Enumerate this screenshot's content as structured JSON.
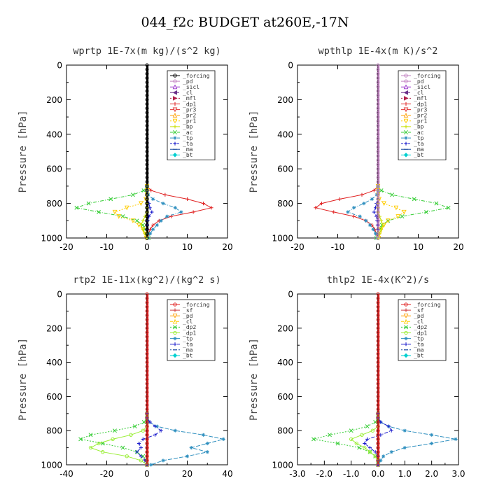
{
  "figure_title": "044_f2c  BUDGET at260E,-17N",
  "chart_data": [
    {
      "type": "line",
      "title": "wprtp  1E-7x(m kg)/(s^2 kg)",
      "ylabel": "Pressure [hPa]",
      "xlabel": "",
      "xlim": [
        -20,
        20
      ],
      "ylim": [
        1000,
        0
      ],
      "y_inverted": true,
      "xticks": [
        -20,
        -10,
        0,
        10,
        20
      ],
      "xtick_labels": [
        "-20",
        "-10",
        "0",
        "10",
        "20"
      ],
      "yticks": [
        0,
        200,
        400,
        600,
        800,
        1000
      ],
      "ytick_labels": [
        "0",
        "200",
        "400",
        "600",
        "800",
        "1000"
      ],
      "legend_placement": "top-right",
      "legend": [
        "_forcing",
        "_pd",
        "_sicl",
        "_cl",
        "_mfl",
        "_dp1",
        "_pr3",
        "_pr2",
        "_pr1",
        "_bp",
        "_ac",
        "_tp",
        "_ta",
        "_ma",
        "_bt"
      ],
      "colors": [
        "#000000",
        "#c080c0",
        "#9933cc",
        "#6a2f8a",
        "#b0204a",
        "#e02020",
        "#e03030",
        "#ffa000",
        "#ffcc00",
        "#c8e000",
        "#33cc33",
        "#2e8fbf",
        "#1a1acc",
        "#1a4aa0",
        "#00d0d0"
      ],
      "markers": [
        "circle",
        "circle",
        "triangle",
        "triangle-left",
        "triangle-right",
        "plus",
        "triangle-down",
        "triangle",
        "triangle-down",
        "plus",
        "x",
        "star",
        "plus",
        "dash",
        "diamond"
      ],
      "pressure": [
        0,
        50,
        100,
        150,
        200,
        250,
        300,
        350,
        400,
        450,
        500,
        550,
        600,
        650,
        700,
        725,
        750,
        775,
        800,
        825,
        850,
        875,
        900,
        925,
        950,
        975,
        1000
      ],
      "series": [
        {
          "legend_index": 5,
          "values": [
            0,
            0,
            0,
            0,
            0,
            0,
            0,
            0,
            0,
            0,
            0,
            0,
            0,
            0,
            0,
            1.0,
            4.5,
            10.0,
            14.0,
            16.0,
            11.5,
            6.0,
            3.0,
            1.5,
            0.8,
            0.4,
            0.2
          ]
        },
        {
          "legend_index": 10,
          "values": [
            0,
            0,
            0,
            0,
            0,
            0,
            0,
            0,
            0,
            0,
            0,
            0,
            0,
            0,
            0,
            -0.8,
            -3.5,
            -9.0,
            -14.5,
            -17.5,
            -12.0,
            -6.0,
            -2.5,
            -1.0,
            -0.5,
            0.2,
            0.4
          ]
        },
        {
          "legend_index": 8,
          "values": [
            0,
            0,
            0,
            0,
            0,
            0,
            0,
            0,
            0,
            0,
            0,
            0,
            0,
            0,
            0,
            0,
            0,
            -0.3,
            -1.5,
            -5.0,
            -8.0,
            -7.0,
            -3.5,
            -2.0,
            -1.0,
            -0.5,
            -0.2
          ]
        },
        {
          "legend_index": 11,
          "values": [
            0,
            0,
            0,
            0,
            0,
            0,
            0,
            0,
            0,
            0,
            0,
            0,
            0,
            0,
            0,
            0,
            0.3,
            1.5,
            4.0,
            7.0,
            8.5,
            5.0,
            3.5,
            2.5,
            1.5,
            0.8,
            0.3
          ]
        },
        {
          "legend_index": 12,
          "values": [
            0,
            0,
            0,
            0,
            0,
            0,
            0,
            0,
            0,
            0,
            0,
            0,
            0,
            0,
            0,
            0,
            0,
            0,
            0.5,
            0.7,
            1.2,
            0.5,
            0.2,
            0.1,
            0,
            0,
            0
          ]
        },
        {
          "legend_index": 9,
          "values": [
            0,
            0,
            0,
            0,
            0,
            0,
            0,
            0,
            0,
            0,
            0,
            0,
            0,
            0,
            0,
            0,
            0,
            0,
            0,
            0,
            0,
            -0.5,
            -1.0,
            -1.5,
            -1.0,
            -0.5,
            0
          ]
        },
        {
          "legend_index": 0,
          "values": [
            0,
            0,
            0,
            0,
            0,
            0,
            0,
            0,
            0,
            0,
            0,
            0,
            0,
            0,
            0,
            0,
            0,
            0,
            0,
            0,
            0,
            0,
            0,
            0,
            0,
            0,
            0
          ]
        }
      ]
    },
    {
      "type": "line",
      "title": "wpthlp  1E-4x(m K)/s^2",
      "ylabel": "Pressure [hPa]",
      "xlabel": "",
      "xlim": [
        -20,
        20
      ],
      "ylim": [
        1000,
        0
      ],
      "y_inverted": true,
      "xticks": [
        -20,
        -10,
        0,
        10,
        20
      ],
      "xtick_labels": [
        "-20",
        "-10",
        "0",
        "10",
        "20"
      ],
      "yticks": [
        0,
        200,
        400,
        600,
        800,
        1000
      ],
      "ytick_labels": [
        "0",
        "200",
        "400",
        "600",
        "800",
        "1000"
      ],
      "legend_placement": "top-right",
      "legend": [
        "_forcing",
        "_pd",
        "_sicl",
        "_cl",
        "_mfl",
        "_dp1",
        "_pr3",
        "_pr2",
        "_pr1",
        "_bp",
        "_ac",
        "_tp",
        "_ta",
        "_ma",
        "_bt"
      ],
      "colors": [
        "#c080c0",
        "#c080c0",
        "#9933cc",
        "#6a2f8a",
        "#b0204a",
        "#e02020",
        "#e03030",
        "#ffa000",
        "#ffcc00",
        "#c8e000",
        "#33cc33",
        "#2e8fbf",
        "#1a1acc",
        "#1a4aa0",
        "#00d0d0"
      ],
      "markers": [
        "circle",
        "circle",
        "triangle",
        "triangle-left",
        "triangle-right",
        "plus",
        "triangle-down",
        "triangle",
        "triangle-down",
        "plus",
        "x",
        "star",
        "plus",
        "dash",
        "diamond"
      ],
      "pressure": [
        0,
        50,
        100,
        150,
        200,
        250,
        300,
        350,
        400,
        450,
        500,
        550,
        600,
        650,
        700,
        725,
        750,
        775,
        800,
        825,
        850,
        875,
        900,
        925,
        950,
        975,
        1000
      ],
      "series": [
        {
          "legend_index": 5,
          "values": [
            0,
            0,
            0,
            0,
            0,
            0,
            0,
            0,
            0,
            0,
            0,
            0,
            0,
            0,
            0,
            -1.0,
            -4.0,
            -9.5,
            -14.0,
            -15.5,
            -11.0,
            -6.0,
            -3.0,
            -1.5,
            -0.8,
            -0.4,
            -0.2
          ]
        },
        {
          "legend_index": 10,
          "values": [
            0,
            0,
            0,
            0,
            0,
            0,
            0,
            0,
            0,
            0,
            0,
            0,
            0,
            0,
            0,
            0.8,
            3.5,
            9.0,
            14.5,
            17.5,
            12.0,
            6.0,
            2.5,
            1.0,
            0.5,
            -0.2,
            -0.4
          ]
        },
        {
          "legend_index": 8,
          "values": [
            0,
            0,
            0,
            0,
            0,
            0,
            0,
            0,
            0,
            0,
            0,
            0,
            0,
            0,
            0,
            0,
            0,
            0.3,
            1.5,
            4.5,
            6.5,
            5.0,
            2.5,
            1.5,
            0.8,
            0.4,
            0.2
          ]
        },
        {
          "legend_index": 11,
          "values": [
            0,
            0,
            0,
            0,
            0,
            0,
            0,
            0,
            0,
            0,
            0,
            0,
            0,
            0,
            0,
            0,
            -0.3,
            -1.5,
            -3.5,
            -6.0,
            -7.5,
            -4.5,
            -3.0,
            -2.0,
            -1.2,
            -0.6,
            -0.2
          ]
        },
        {
          "legend_index": 12,
          "values": [
            0,
            0,
            0,
            0,
            0,
            0,
            0,
            0,
            0,
            0,
            0,
            0,
            0,
            0,
            0,
            0,
            0,
            0,
            -0.4,
            -0.6,
            -1.0,
            -0.4,
            -0.2,
            -0.1,
            0,
            0,
            0
          ]
        },
        {
          "legend_index": 9,
          "values": [
            0,
            0,
            0,
            0,
            0,
            0,
            0,
            0,
            0,
            0,
            0,
            0,
            0,
            0,
            0,
            0,
            0,
            0,
            0,
            0,
            0,
            0.4,
            0.8,
            1.2,
            0.8,
            0.4,
            0
          ]
        },
        {
          "legend_index": 0,
          "values": [
            0,
            0,
            0,
            0,
            0,
            0,
            0,
            0,
            0,
            0,
            0,
            0,
            0,
            0,
            0,
            0,
            0,
            0,
            0,
            0,
            0,
            0,
            0,
            0,
            0,
            0,
            0
          ]
        }
      ]
    },
    {
      "type": "line",
      "title": "rtp2  1E-11x(kg^2)/(kg^2 s)",
      "ylabel": "Pressure [hPa]",
      "xlabel": "",
      "xlim": [
        -40,
        40
      ],
      "ylim": [
        1000,
        0
      ],
      "y_inverted": true,
      "xticks": [
        -40,
        -20,
        0,
        20,
        40
      ],
      "xtick_labels": [
        "-40",
        "-20",
        "0",
        "20",
        "40"
      ],
      "yticks": [
        0,
        200,
        400,
        600,
        800,
        1000
      ],
      "ytick_labels": [
        "0",
        "200",
        "400",
        "600",
        "800",
        "1000"
      ],
      "legend_placement": "top-right",
      "legend": [
        "_forcing",
        "_sf",
        "_pd",
        "_cl",
        "_dp2",
        "_dp1",
        "_tp",
        "_ta",
        "_ma",
        "_bt"
      ],
      "colors": [
        "#e02020",
        "#d04040",
        "#ffa000",
        "#ffcc00",
        "#33cc33",
        "#99ee33",
        "#2e8fbf",
        "#1a1acc",
        "#1a4aa0",
        "#00d0d0"
      ],
      "markers": [
        "circle",
        "plus",
        "triangle-down",
        "triangle",
        "x",
        "circle",
        "star",
        "plus",
        "dash",
        "diamond"
      ],
      "pressure": [
        0,
        50,
        100,
        150,
        200,
        250,
        300,
        350,
        400,
        450,
        500,
        550,
        600,
        650,
        700,
        725,
        750,
        775,
        800,
        825,
        850,
        875,
        900,
        925,
        950,
        975,
        1000
      ],
      "series": [
        {
          "legend_index": 4,
          "values": [
            0,
            0,
            0,
            0,
            0,
            0,
            0,
            0,
            0,
            0,
            0,
            0,
            0,
            0,
            0,
            0,
            -1.5,
            -6.0,
            -16.0,
            -28.0,
            -33.0,
            -22.0,
            -12.0,
            -5.0,
            -2.0,
            -0.5,
            0
          ]
        },
        {
          "legend_index": 5,
          "values": [
            0,
            0,
            0,
            0,
            0,
            0,
            0,
            0,
            0,
            0,
            0,
            0,
            0,
            0,
            0,
            0,
            0,
            0,
            -2.0,
            -8.0,
            -17.0,
            -24.0,
            -28.0,
            -22.0,
            -10.0,
            -3.0,
            0
          ]
        },
        {
          "legend_index": 6,
          "values": [
            0,
            0,
            0,
            0,
            0,
            0,
            0,
            0,
            0,
            0,
            0,
            0,
            0,
            0,
            0,
            0,
            1.0,
            5.0,
            14.0,
            28.0,
            38.0,
            30.0,
            22.0,
            30.0,
            20.0,
            8.0,
            2.0
          ]
        },
        {
          "legend_index": 7,
          "values": [
            0,
            0,
            0,
            0,
            0,
            0,
            0,
            0,
            0,
            0,
            0,
            0,
            0,
            0,
            0,
            0,
            1.5,
            4.0,
            7.0,
            4.0,
            -2.0,
            -4.0,
            -3.0,
            -5.0,
            -3.0,
            -1.0,
            0
          ]
        },
        {
          "legend_index": 0,
          "values": [
            0,
            0,
            0,
            0,
            0,
            0,
            0,
            0,
            0,
            0,
            0,
            0,
            0,
            0,
            0,
            0,
            0,
            0,
            0,
            0,
            0,
            0,
            0,
            0,
            0,
            0,
            0
          ]
        }
      ]
    },
    {
      "type": "line",
      "title": "thlp2  1E-4x(K^2)/s",
      "ylabel": "Pressure [hPa]",
      "xlabel": "",
      "xlim": [
        -3.0,
        3.0
      ],
      "ylim": [
        1000,
        0
      ],
      "y_inverted": true,
      "xticks": [
        -3.0,
        -2.0,
        -1.0,
        0.0,
        1.0,
        2.0,
        3.0
      ],
      "xtick_labels": [
        "-3.0",
        "-2.0",
        "-1.0",
        "0.0",
        "1.0",
        "2.0",
        "3.0"
      ],
      "yticks": [
        0,
        200,
        400,
        600,
        800,
        1000
      ],
      "ytick_labels": [
        "0",
        "200",
        "400",
        "600",
        "800",
        "1000"
      ],
      "legend_placement": "top-right",
      "legend": [
        "_forcing",
        "_sf",
        "_pd",
        "_cl",
        "_dp2",
        "_dp1",
        "_tp",
        "_ta",
        "_ma",
        "_bt"
      ],
      "colors": [
        "#e02020",
        "#d04040",
        "#ffa000",
        "#ffcc00",
        "#33cc33",
        "#99ee33",
        "#2e8fbf",
        "#1a1acc",
        "#1a4aa0",
        "#00d0d0"
      ],
      "markers": [
        "circle",
        "plus",
        "triangle-down",
        "triangle",
        "x",
        "circle",
        "star",
        "plus",
        "dash",
        "diamond"
      ],
      "pressure": [
        0,
        50,
        100,
        150,
        200,
        250,
        300,
        350,
        400,
        450,
        500,
        550,
        600,
        650,
        700,
        725,
        750,
        775,
        800,
        825,
        850,
        875,
        900,
        925,
        950,
        975,
        1000
      ],
      "series": [
        {
          "legend_index": 4,
          "values": [
            0,
            0,
            0,
            0,
            0,
            0,
            0,
            0,
            0,
            0,
            0,
            0,
            0,
            0,
            0,
            0,
            -0.1,
            -0.4,
            -1.0,
            -1.8,
            -2.4,
            -1.5,
            -0.7,
            -0.3,
            -0.1,
            0,
            0
          ]
        },
        {
          "legend_index": 5,
          "values": [
            0,
            0,
            0,
            0,
            0,
            0,
            0,
            0,
            0,
            0,
            0,
            0,
            0,
            0,
            0,
            0,
            0,
            0,
            -0.2,
            -0.6,
            -1.0,
            -0.8,
            -0.5,
            -0.3,
            -0.1,
            0,
            0
          ]
        },
        {
          "legend_index": 6,
          "values": [
            0,
            0,
            0,
            0,
            0,
            0,
            0,
            0,
            0,
            0,
            0,
            0,
            0,
            0,
            0,
            0,
            0.1,
            0.4,
            1.0,
            2.0,
            2.9,
            2.0,
            1.0,
            0.5,
            0.2,
            0.1,
            0
          ]
        },
        {
          "legend_index": 7,
          "values": [
            0,
            0,
            0,
            0,
            0,
            0,
            0,
            0,
            0,
            0,
            0,
            0,
            0,
            0,
            0,
            0,
            0.1,
            0.4,
            0.5,
            0.1,
            -0.4,
            -0.5,
            -0.3,
            -0.1,
            0,
            0,
            0
          ]
        },
        {
          "legend_index": 0,
          "values": [
            0,
            0,
            0,
            0,
            0,
            0,
            0,
            0,
            0,
            0,
            0,
            0,
            0,
            0,
            0,
            0,
            0,
            0,
            0,
            0,
            0,
            0,
            0,
            0,
            0,
            0,
            0
          ]
        }
      ]
    }
  ]
}
